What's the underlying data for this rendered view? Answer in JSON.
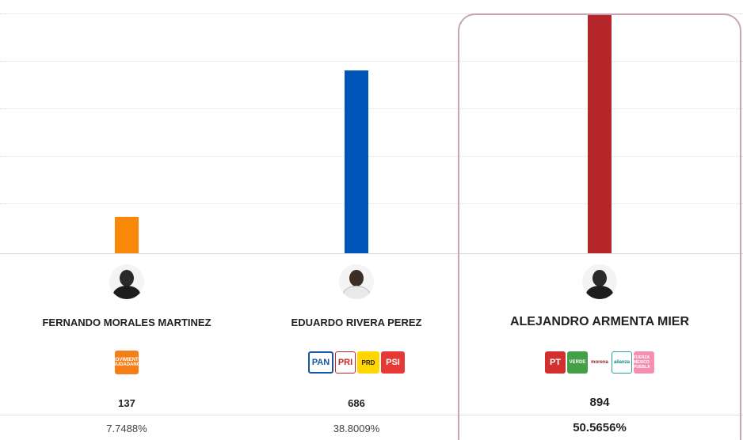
{
  "colors": {
    "morales": "#f98708",
    "rivera": "#0055bb",
    "armenta": "#b5262b",
    "highlight": "#c9a3b3"
  },
  "chart_data": {
    "type": "bar",
    "categories": [
      "FERNANDO MORALES MARTINEZ",
      "EDUARDO RIVERA PEREZ",
      "ALEJANDRO ARMENTA MIER"
    ],
    "values": [
      137,
      686,
      894
    ],
    "percentages": [
      "7.7488%",
      "38.8009%",
      "50.5656%"
    ],
    "ylim": [
      0,
      900
    ],
    "grid": true
  },
  "candidates": [
    {
      "name": "FERNANDO MORALES MARTINEZ",
      "votes": "137",
      "pct": "7.7488%",
      "parties": [
        {
          "label": "MOVIMIENTO CIUDADANO",
          "icon": "movimiento-ciudadano-logo"
        }
      ]
    },
    {
      "name": "EDUARDO RIVERA PEREZ",
      "votes": "686",
      "pct": "38.8009%",
      "parties": [
        {
          "label": "PAN",
          "icon": "pan-logo"
        },
        {
          "label": "PRI",
          "icon": "pri-logo"
        },
        {
          "label": "PRD",
          "icon": "prd-logo"
        },
        {
          "label": "PSI",
          "icon": "psi-logo"
        }
      ]
    },
    {
      "name": "ALEJANDRO ARMENTA MIER",
      "votes": "894",
      "pct": "50.5656%",
      "parties": [
        {
          "label": "PT",
          "icon": "pt-logo"
        },
        {
          "label": "VERDE",
          "icon": "verde-logo"
        },
        {
          "label": "morena",
          "icon": "morena-logo"
        },
        {
          "label": "alianza",
          "icon": "nueva-alianza-logo"
        },
        {
          "label": "FUERZA MEXICO PUEBLA",
          "icon": "fuerza-mexico-logo"
        }
      ]
    }
  ]
}
